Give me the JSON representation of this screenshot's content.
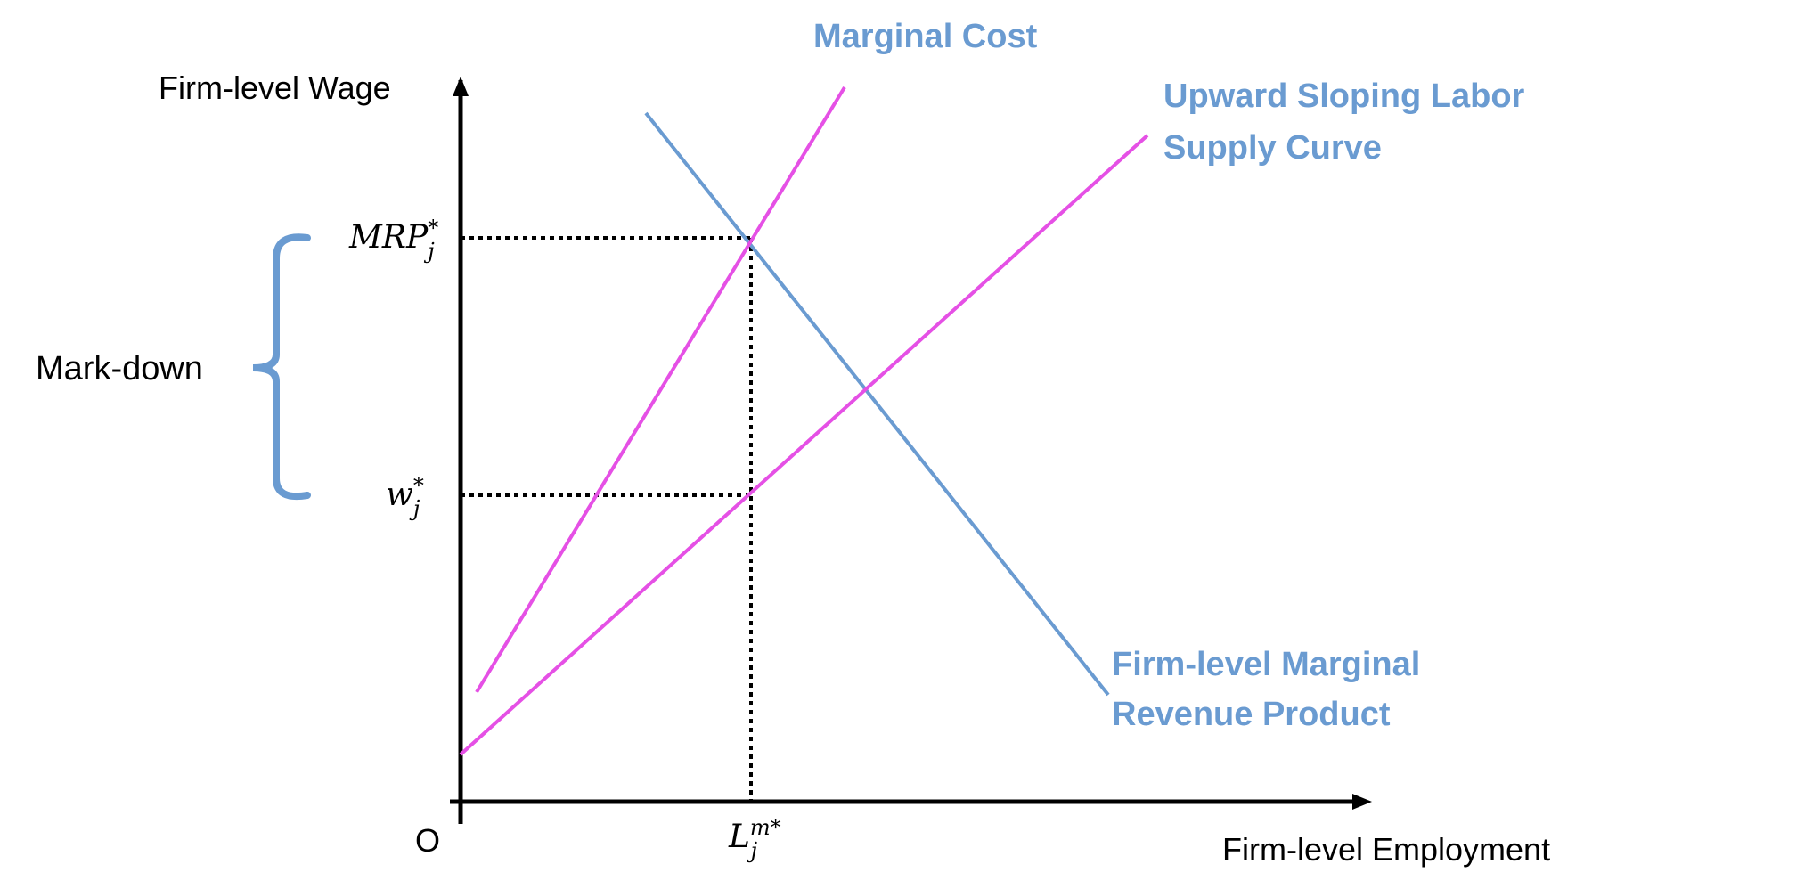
{
  "colors": {
    "curve_blue": "#6a9bd1",
    "curve_magenta": "#e550e5",
    "label_blue": "#6a9bd1",
    "axis": "#000000",
    "guide": "#000000"
  },
  "axes": {
    "y_title": "Firm-level Wage",
    "x_title": "Firm-level Employment",
    "origin": "O"
  },
  "curves": {
    "marginal_cost": {
      "label": "Marginal Cost"
    },
    "labor_supply": {
      "label_line1": "Upward Sloping Labor",
      "label_line2": "Supply Curve"
    },
    "mrp": {
      "label_line1": "Firm-level Marginal",
      "label_line2": "Revenue Product"
    }
  },
  "markers": {
    "mrp_star": {
      "base": "MRP",
      "sub": "j",
      "sup": "*"
    },
    "w_star": {
      "base": "w",
      "sub": "j",
      "sup": "*"
    },
    "l_star": {
      "base": "L",
      "sub": "j",
      "sup": "m*"
    }
  },
  "bracket": {
    "label": "Mark-down",
    "icon": "curly-brace-icon"
  }
}
